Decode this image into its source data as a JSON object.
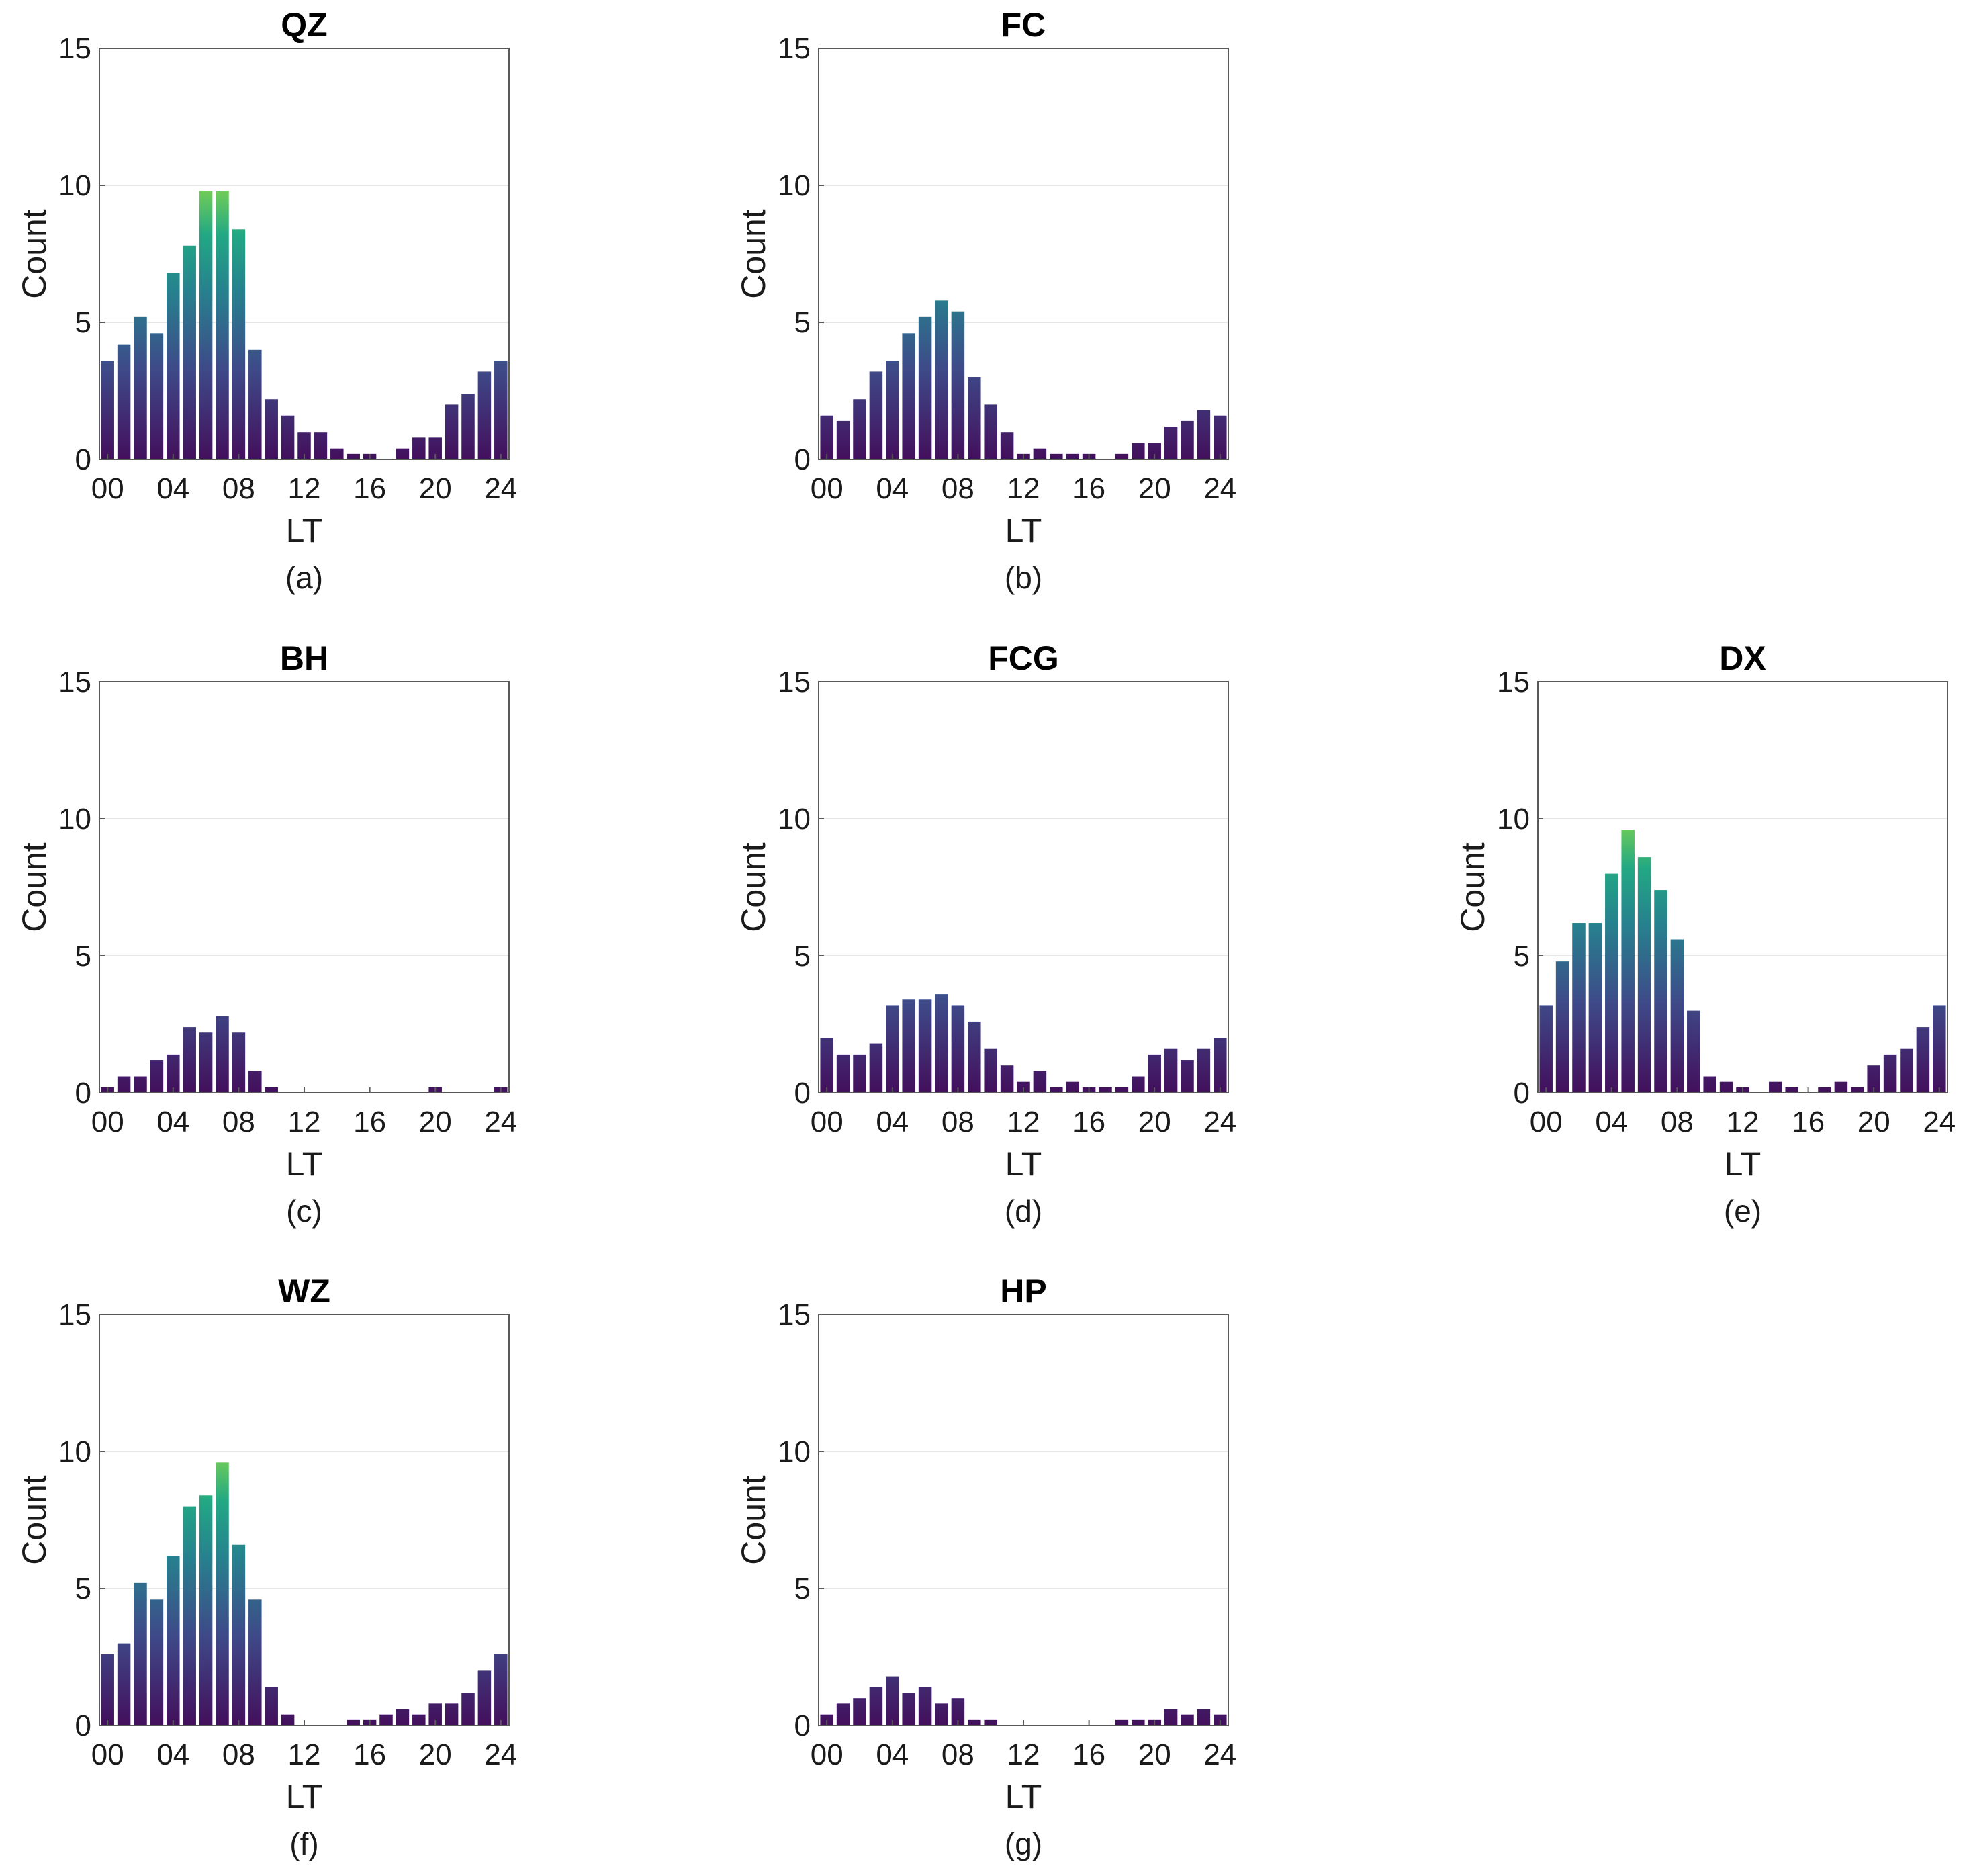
{
  "colors": {
    "bar_low": "#430f5c",
    "bar_mid1": "#3e4a89",
    "bar_mid2": "#26828e",
    "bar_mid3": "#22a884",
    "bar_high": "#7ad151"
  },
  "chart_data": [
    {
      "type": "bar",
      "title": "QZ",
      "caption": "(a)",
      "xlabel": "LT",
      "ylabel": "Count",
      "ylim": [
        0,
        15
      ],
      "x": [
        0,
        1,
        2,
        3,
        4,
        5,
        6,
        7,
        8,
        9,
        10,
        11,
        12,
        13,
        14,
        15,
        16,
        17,
        18,
        19,
        20,
        21,
        22,
        23,
        24
      ],
      "xticks": [
        "00",
        "04",
        "08",
        "12",
        "16",
        "20",
        "24"
      ],
      "yticks": [
        "0",
        "5",
        "10",
        "15"
      ],
      "values": [
        3.6,
        4.2,
        5.2,
        4.6,
        6.8,
        7.8,
        9.8,
        9.8,
        8.4,
        4.0,
        2.2,
        1.6,
        1.0,
        1.0,
        0.4,
        0.2,
        0.2,
        0,
        0.4,
        0.8,
        0.8,
        2.0,
        2.4,
        3.2,
        3.6
      ]
    },
    {
      "type": "bar",
      "title": "FC",
      "caption": "(b)",
      "xlabel": "LT",
      "ylabel": "Count",
      "ylim": [
        0,
        15
      ],
      "x": [
        0,
        1,
        2,
        3,
        4,
        5,
        6,
        7,
        8,
        9,
        10,
        11,
        12,
        13,
        14,
        15,
        16,
        17,
        18,
        19,
        20,
        21,
        22,
        23,
        24
      ],
      "xticks": [
        "00",
        "04",
        "08",
        "12",
        "16",
        "20",
        "24"
      ],
      "yticks": [
        "0",
        "5",
        "10",
        "15"
      ],
      "values": [
        1.6,
        1.4,
        2.2,
        3.2,
        3.6,
        4.6,
        5.2,
        5.8,
        5.4,
        3.0,
        2.0,
        1.0,
        0.2,
        0.4,
        0.2,
        0.2,
        0.2,
        0,
        0.2,
        0.6,
        0.6,
        1.2,
        1.4,
        1.8,
        1.6
      ]
    },
    {
      "type": "bar",
      "title": "BH",
      "caption": "(c)",
      "xlabel": "LT",
      "ylabel": "Count",
      "ylim": [
        0,
        15
      ],
      "x": [
        0,
        1,
        2,
        3,
        4,
        5,
        6,
        7,
        8,
        9,
        10,
        11,
        12,
        13,
        14,
        15,
        16,
        17,
        18,
        19,
        20,
        21,
        22,
        23,
        24
      ],
      "xticks": [
        "00",
        "04",
        "08",
        "12",
        "16",
        "20",
        "24"
      ],
      "yticks": [
        "0",
        "5",
        "10",
        "15"
      ],
      "values": [
        0.2,
        0.6,
        0.6,
        1.2,
        1.4,
        2.4,
        2.2,
        2.8,
        2.2,
        0.8,
        0.2,
        0,
        0,
        0,
        0,
        0,
        0,
        0,
        0,
        0,
        0.2,
        0,
        0,
        0,
        0.2
      ]
    },
    {
      "type": "bar",
      "title": "FCG",
      "caption": "(d)",
      "xlabel": "LT",
      "ylabel": "Count",
      "ylim": [
        0,
        15
      ],
      "x": [
        0,
        1,
        2,
        3,
        4,
        5,
        6,
        7,
        8,
        9,
        10,
        11,
        12,
        13,
        14,
        15,
        16,
        17,
        18,
        19,
        20,
        21,
        22,
        23,
        24
      ],
      "xticks": [
        "00",
        "04",
        "08",
        "12",
        "16",
        "20",
        "24"
      ],
      "yticks": [
        "0",
        "5",
        "10",
        "15"
      ],
      "values": [
        2.0,
        1.4,
        1.4,
        1.8,
        3.2,
        3.4,
        3.4,
        3.6,
        3.2,
        2.6,
        1.6,
        1.0,
        0.4,
        0.8,
        0.2,
        0.4,
        0.2,
        0.2,
        0.2,
        0.6,
        1.4,
        1.6,
        1.2,
        1.6,
        2.0
      ]
    },
    {
      "type": "bar",
      "title": "DX",
      "caption": "(e)",
      "xlabel": "LT",
      "ylabel": "Count",
      "ylim": [
        0,
        15
      ],
      "x": [
        0,
        1,
        2,
        3,
        4,
        5,
        6,
        7,
        8,
        9,
        10,
        11,
        12,
        13,
        14,
        15,
        16,
        17,
        18,
        19,
        20,
        21,
        22,
        23,
        24
      ],
      "xticks": [
        "00",
        "04",
        "08",
        "12",
        "16",
        "20",
        "24"
      ],
      "yticks": [
        "0",
        "5",
        "10",
        "15"
      ],
      "values": [
        3.2,
        4.8,
        6.2,
        6.2,
        8.0,
        9.6,
        8.6,
        7.4,
        5.6,
        3.0,
        0.6,
        0.4,
        0.2,
        0,
        0.4,
        0.2,
        0,
        0.2,
        0.4,
        0.2,
        1.0,
        1.4,
        1.6,
        2.4,
        3.2
      ]
    },
    {
      "type": "bar",
      "title": "WZ",
      "caption": "(f)",
      "xlabel": "LT",
      "ylabel": "Count",
      "ylim": [
        0,
        15
      ],
      "x": [
        0,
        1,
        2,
        3,
        4,
        5,
        6,
        7,
        8,
        9,
        10,
        11,
        12,
        13,
        14,
        15,
        16,
        17,
        18,
        19,
        20,
        21,
        22,
        23,
        24
      ],
      "xticks": [
        "00",
        "04",
        "08",
        "12",
        "16",
        "20",
        "24"
      ],
      "yticks": [
        "0",
        "5",
        "10",
        "15"
      ],
      "values": [
        2.6,
        3.0,
        5.2,
        4.6,
        6.2,
        8.0,
        8.4,
        9.6,
        6.6,
        4.6,
        1.4,
        0.4,
        0,
        0,
        0,
        0.2,
        0.2,
        0.4,
        0.6,
        0.4,
        0.8,
        0.8,
        1.2,
        2.0,
        2.6
      ]
    },
    {
      "type": "bar",
      "title": "HP",
      "caption": "(g)",
      "xlabel": "LT",
      "ylabel": "Count",
      "ylim": [
        0,
        15
      ],
      "x": [
        0,
        1,
        2,
        3,
        4,
        5,
        6,
        7,
        8,
        9,
        10,
        11,
        12,
        13,
        14,
        15,
        16,
        17,
        18,
        19,
        20,
        21,
        22,
        23,
        24
      ],
      "xticks": [
        "00",
        "04",
        "08",
        "12",
        "16",
        "20",
        "24"
      ],
      "yticks": [
        "0",
        "5",
        "10",
        "15"
      ],
      "values": [
        0.4,
        0.8,
        1.0,
        1.4,
        1.8,
        1.2,
        1.4,
        0.8,
        1.0,
        0.2,
        0.2,
        0,
        0,
        0,
        0,
        0,
        0,
        0,
        0.2,
        0.2,
        0.2,
        0.6,
        0.4,
        0.6,
        0.4
      ]
    }
  ]
}
